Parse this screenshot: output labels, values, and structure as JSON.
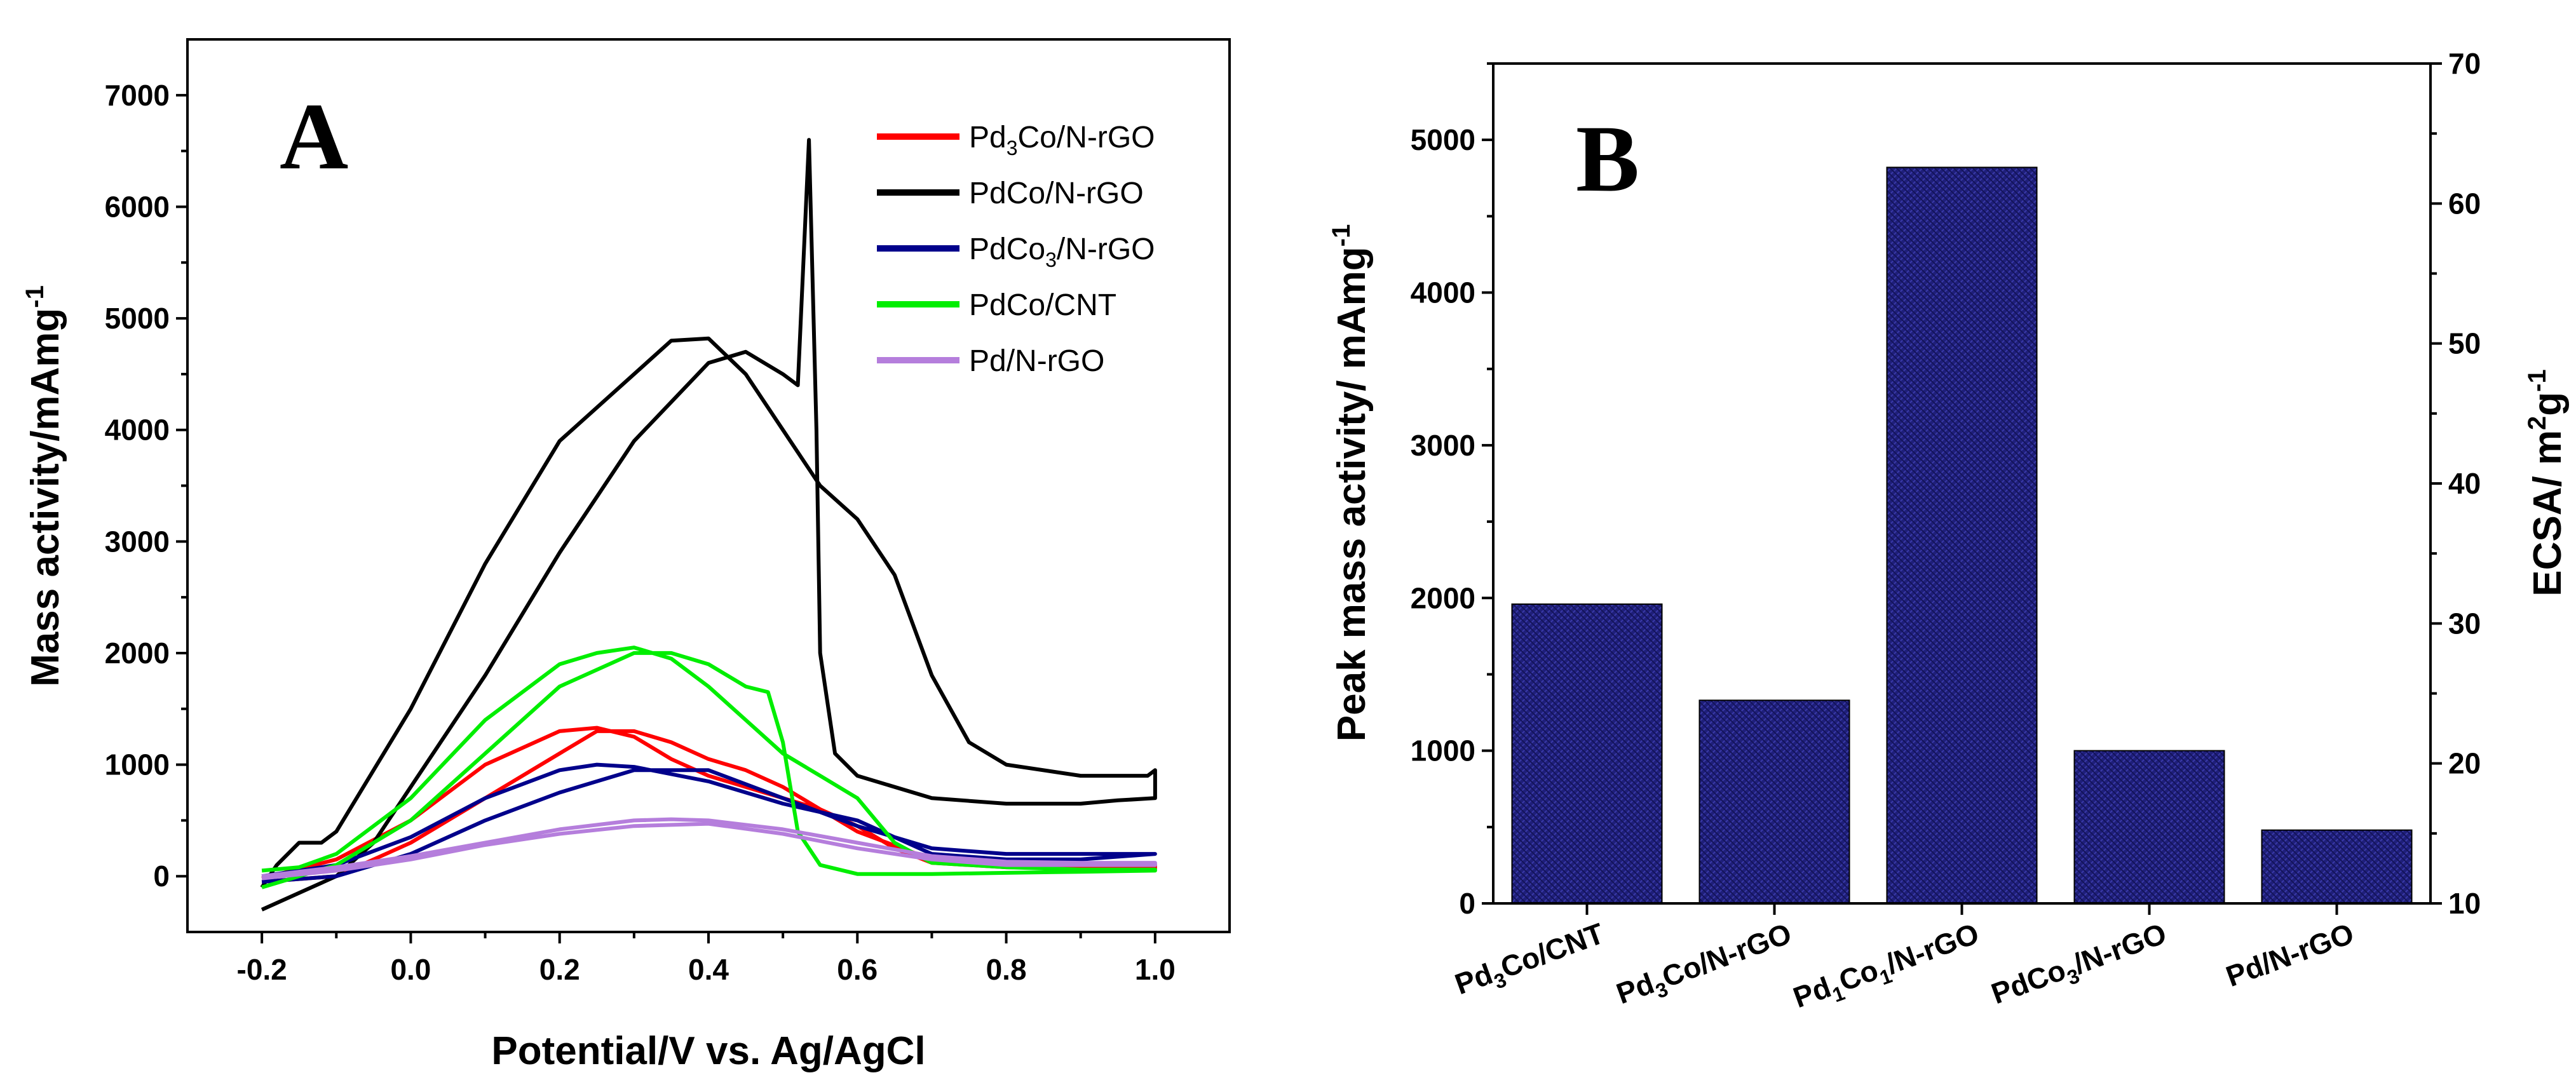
{
  "chart_data": [
    {
      "type": "line",
      "panel_label": "A",
      "xlabel": "Potential/V vs. Ag/AgCl",
      "ylabel": "Mass activity/mAmg",
      "ylabel_sup": "-1",
      "xlim": [
        -0.3,
        1.1
      ],
      "ylim": [
        -500,
        7500
      ],
      "xticks": [
        -0.2,
        0.0,
        0.2,
        0.4,
        0.6,
        0.8,
        1.0
      ],
      "xtick_labels": [
        "-0.2",
        "0.0",
        "0.2",
        "0.4",
        "0.6",
        "0.8",
        "1.0"
      ],
      "yticks": [
        0,
        1000,
        2000,
        3000,
        4000,
        5000,
        6000,
        7000
      ],
      "ytick_labels": [
        "0",
        "1000",
        "2000",
        "3000",
        "4000",
        "5000",
        "6000",
        "7000"
      ],
      "legend_position": "top-right",
      "series": [
        {
          "name": "Pd3Co/N-rGO",
          "legend_parts": [
            [
              "Pd",
              ""
            ],
            [
              "3",
              "sub"
            ],
            [
              "Co/N-rGO",
              ""
            ]
          ],
          "color": "#ff0000",
          "forward": [
            [
              -0.2,
              -50
            ],
            [
              -0.1,
              0
            ],
            [
              0.0,
              300
            ],
            [
              0.1,
              700
            ],
            [
              0.2,
              1100
            ],
            [
              0.25,
              1300
            ],
            [
              0.3,
              1300
            ],
            [
              0.35,
              1200
            ],
            [
              0.4,
              1050
            ],
            [
              0.45,
              950
            ],
            [
              0.5,
              800
            ],
            [
              0.55,
              600
            ],
            [
              0.6,
              450
            ],
            [
              0.65,
              250
            ],
            [
              0.7,
              120
            ],
            [
              0.8,
              80
            ],
            [
              0.9,
              70
            ],
            [
              1.0,
              70
            ]
          ],
          "backward": [
            [
              1.0,
              100
            ],
            [
              0.9,
              100
            ],
            [
              0.8,
              110
            ],
            [
              0.7,
              150
            ],
            [
              0.6,
              400
            ],
            [
              0.55,
              600
            ],
            [
              0.5,
              700
            ],
            [
              0.45,
              800
            ],
            [
              0.4,
              900
            ],
            [
              0.35,
              1050
            ],
            [
              0.3,
              1250
            ],
            [
              0.25,
              1330
            ],
            [
              0.2,
              1300
            ],
            [
              0.1,
              1000
            ],
            [
              0.0,
              500
            ],
            [
              -0.1,
              150
            ],
            [
              -0.2,
              -20
            ]
          ]
        },
        {
          "name": "PdCo/N-rGO",
          "legend_parts": [
            [
              "PdCo/N-rGO",
              ""
            ]
          ],
          "color": "#000000",
          "forward": [
            [
              -0.2,
              -300
            ],
            [
              -0.15,
              -150
            ],
            [
              -0.1,
              0
            ],
            [
              -0.05,
              300
            ],
            [
              0.0,
              800
            ],
            [
              0.1,
              1800
            ],
            [
              0.2,
              2900
            ],
            [
              0.3,
              3900
            ],
            [
              0.4,
              4600
            ],
            [
              0.45,
              4700
            ],
            [
              0.5,
              4500
            ],
            [
              0.52,
              4400
            ],
            [
              0.535,
              6600
            ],
            [
              0.545,
              4000
            ],
            [
              0.55,
              2000
            ],
            [
              0.57,
              1100
            ],
            [
              0.6,
              900
            ],
            [
              0.7,
              700
            ],
            [
              0.8,
              650
            ],
            [
              0.9,
              650
            ],
            [
              0.95,
              680
            ],
            [
              1.0,
              700
            ]
          ],
          "backward": [
            [
              1.0,
              950
            ],
            [
              0.99,
              900
            ],
            [
              0.9,
              900
            ],
            [
              0.8,
              1000
            ],
            [
              0.75,
              1200
            ],
            [
              0.7,
              1800
            ],
            [
              0.65,
              2700
            ],
            [
              0.6,
              3200
            ],
            [
              0.55,
              3500
            ],
            [
              0.5,
              4000
            ],
            [
              0.45,
              4500
            ],
            [
              0.4,
              4820
            ],
            [
              0.35,
              4800
            ],
            [
              0.3,
              4500
            ],
            [
              0.2,
              3900
            ],
            [
              0.1,
              2800
            ],
            [
              0.0,
              1500
            ],
            [
              -0.1,
              400
            ],
            [
              -0.12,
              300
            ],
            [
              -0.15,
              300
            ],
            [
              -0.18,
              100
            ],
            [
              -0.2,
              -100
            ]
          ]
        },
        {
          "name": "PdCo3/N-rGO",
          "legend_parts": [
            [
              "PdCo",
              ""
            ],
            [
              "3",
              "sub"
            ],
            [
              "/N-rGO",
              ""
            ]
          ],
          "color": "#00008b",
          "forward": [
            [
              -0.2,
              -50
            ],
            [
              -0.1,
              0
            ],
            [
              0.0,
              200
            ],
            [
              0.1,
              500
            ],
            [
              0.2,
              750
            ],
            [
              0.3,
              950
            ],
            [
              0.4,
              950
            ],
            [
              0.5,
              700
            ],
            [
              0.6,
              450
            ],
            [
              0.7,
              250
            ],
            [
              0.8,
              200
            ],
            [
              0.9,
              200
            ],
            [
              1.0,
              200
            ]
          ],
          "backward": [
            [
              1.0,
              200
            ],
            [
              0.9,
              150
            ],
            [
              0.8,
              150
            ],
            [
              0.7,
              200
            ],
            [
              0.6,
              500
            ],
            [
              0.5,
              650
            ],
            [
              0.4,
              850
            ],
            [
              0.3,
              980
            ],
            [
              0.25,
              1000
            ],
            [
              0.2,
              950
            ],
            [
              0.1,
              700
            ],
            [
              0.0,
              350
            ],
            [
              -0.1,
              100
            ],
            [
              -0.2,
              0
            ]
          ]
        },
        {
          "name": "PdCo/CNT",
          "legend_parts": [
            [
              "PdCo/CNT",
              ""
            ]
          ],
          "color": "#00ee00",
          "forward": [
            [
              -0.2,
              -100
            ],
            [
              -0.1,
              100
            ],
            [
              0.0,
              500
            ],
            [
              0.1,
              1100
            ],
            [
              0.2,
              1700
            ],
            [
              0.3,
              2000
            ],
            [
              0.35,
              2000
            ],
            [
              0.4,
              1900
            ],
            [
              0.45,
              1700
            ],
            [
              0.48,
              1650
            ],
            [
              0.5,
              1200
            ],
            [
              0.52,
              400
            ],
            [
              0.55,
              100
            ],
            [
              0.6,
              20
            ],
            [
              0.7,
              20
            ],
            [
              0.8,
              30
            ],
            [
              0.9,
              40
            ],
            [
              1.0,
              50
            ]
          ],
          "backward": [
            [
              1.0,
              60
            ],
            [
              0.9,
              60
            ],
            [
              0.8,
              80
            ],
            [
              0.7,
              120
            ],
            [
              0.65,
              300
            ],
            [
              0.6,
              700
            ],
            [
              0.55,
              900
            ],
            [
              0.5,
              1100
            ],
            [
              0.45,
              1400
            ],
            [
              0.4,
              1700
            ],
            [
              0.35,
              1950
            ],
            [
              0.3,
              2050
            ],
            [
              0.25,
              2000
            ],
            [
              0.2,
              1900
            ],
            [
              0.1,
              1400
            ],
            [
              0.0,
              700
            ],
            [
              -0.1,
              200
            ],
            [
              -0.15,
              80
            ],
            [
              -0.2,
              50
            ]
          ]
        },
        {
          "name": "Pd/N-rGO",
          "legend_parts": [
            [
              "Pd/N-rGO",
              ""
            ]
          ],
          "color": "#b57edc",
          "forward": [
            [
              -0.2,
              -20
            ],
            [
              -0.1,
              50
            ],
            [
              0.0,
              150
            ],
            [
              0.1,
              280
            ],
            [
              0.2,
              380
            ],
            [
              0.3,
              450
            ],
            [
              0.4,
              470
            ],
            [
              0.5,
              380
            ],
            [
              0.6,
              250
            ],
            [
              0.7,
              150
            ],
            [
              0.8,
              100
            ],
            [
              0.9,
              100
            ],
            [
              1.0,
              100
            ]
          ],
          "backward": [
            [
              1.0,
              120
            ],
            [
              0.9,
              120
            ],
            [
              0.8,
              130
            ],
            [
              0.7,
              180
            ],
            [
              0.6,
              300
            ],
            [
              0.5,
              420
            ],
            [
              0.4,
              500
            ],
            [
              0.35,
              510
            ],
            [
              0.3,
              500
            ],
            [
              0.2,
              420
            ],
            [
              0.1,
              300
            ],
            [
              0.0,
              180
            ],
            [
              -0.1,
              80
            ],
            [
              -0.2,
              0
            ]
          ]
        }
      ]
    },
    {
      "type": "bar",
      "panel_label": "B",
      "ylabel": "Peak mass activity/ mAmg",
      "ylabel_sup": "-1",
      "y2label": "ECSA/ m",
      "y2label_sup1": "2",
      "y2label_mid": "g",
      "y2label_sup2": "-1",
      "ylim": [
        0,
        5500
      ],
      "yticks": [
        0,
        1000,
        2000,
        3000,
        4000,
        5000
      ],
      "ytick_labels": [
        "0",
        "1000",
        "2000",
        "3000",
        "4000",
        "5000"
      ],
      "y2lim": [
        10,
        70
      ],
      "y2ticks": [
        10,
        20,
        30,
        40,
        50,
        60,
        70
      ],
      "y2tick_labels": [
        "10",
        "20",
        "30",
        "40",
        "50",
        "60",
        "70"
      ],
      "categories": [
        "Pd3Co/CNT",
        "Pd3Co/N-rGO",
        "Pd1Co1/N-rGO",
        "PdCo3/N-rGO",
        "Pd/N-rGO"
      ],
      "category_parts": [
        [
          [
            "Pd",
            ""
          ],
          [
            "3",
            "sub"
          ],
          [
            "Co/CNT",
            ""
          ]
        ],
        [
          [
            "Pd",
            ""
          ],
          [
            "3",
            "sub"
          ],
          [
            "Co/N-rGO",
            ""
          ]
        ],
        [
          [
            "Pd",
            ""
          ],
          [
            "1",
            "sub"
          ],
          [
            "Co",
            ""
          ],
          [
            "1",
            "sub"
          ],
          [
            "/N-rGO",
            ""
          ]
        ],
        [
          [
            "PdCo",
            ""
          ],
          [
            "3",
            "sub"
          ],
          [
            "/N-rGO",
            ""
          ]
        ],
        [
          [
            "Pd/N-rGO",
            ""
          ]
        ]
      ],
      "values": [
        1960,
        1330,
        4820,
        1000,
        480
      ],
      "bar_color": "#1f1f7a"
    }
  ]
}
